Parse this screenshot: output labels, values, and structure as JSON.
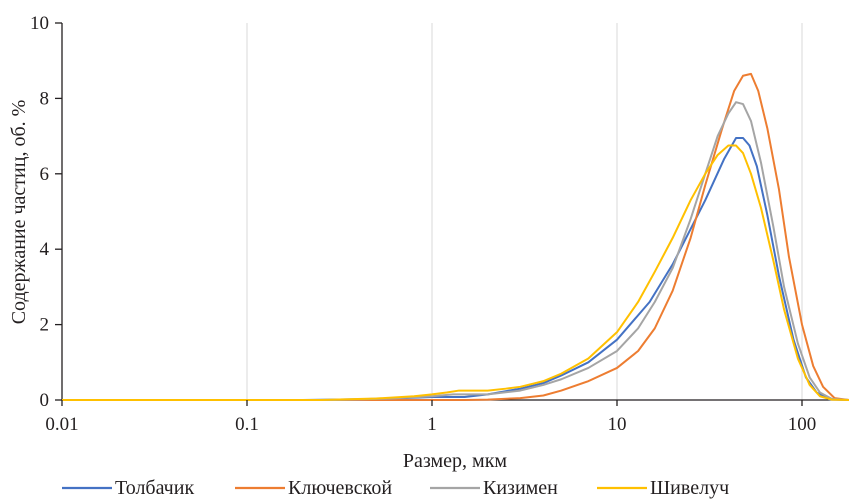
{
  "chart_data": {
    "type": "line",
    "xlabel": "Размер, мкм",
    "ylabel": "Содержание частиц, об. %",
    "x_scale": "log",
    "xlim": [
      0.01,
      180
    ],
    "ylim": [
      0,
      10
    ],
    "x_ticks": [
      0.01,
      0.1,
      1,
      10,
      100
    ],
    "x_tick_labels": [
      "0.01",
      "0.1",
      "1",
      "10",
      "100"
    ],
    "y_ticks": [
      0,
      2,
      4,
      6,
      8,
      10
    ],
    "y_tick_labels": [
      "0",
      "2",
      "4",
      "6",
      "8",
      "10"
    ],
    "grid": "vertical",
    "legend_position": "bottom",
    "series": [
      {
        "name": "Толбачик",
        "color": "#4472c4",
        "points": [
          [
            0.01,
            0
          ],
          [
            0.2,
            0
          ],
          [
            0.4,
            0.02
          ],
          [
            0.7,
            0.05
          ],
          [
            1,
            0.08
          ],
          [
            1.5,
            0.08
          ],
          [
            2,
            0.15
          ],
          [
            3,
            0.3
          ],
          [
            4,
            0.45
          ],
          [
            5,
            0.65
          ],
          [
            7,
            1.0
          ],
          [
            10,
            1.6
          ],
          [
            15,
            2.6
          ],
          [
            20,
            3.6
          ],
          [
            30,
            5.3
          ],
          [
            38,
            6.4
          ],
          [
            44,
            6.95
          ],
          [
            48,
            6.95
          ],
          [
            52,
            6.75
          ],
          [
            57,
            6.2
          ],
          [
            65,
            4.9
          ],
          [
            75,
            3.3
          ],
          [
            90,
            1.6
          ],
          [
            105,
            0.6
          ],
          [
            120,
            0.2
          ],
          [
            140,
            0.02
          ],
          [
            180,
            0
          ]
        ]
      },
      {
        "name": "Ключевской",
        "color": "#ed7d31",
        "points": [
          [
            0.01,
            0
          ],
          [
            1.5,
            0
          ],
          [
            2,
            0.01
          ],
          [
            3,
            0.05
          ],
          [
            4,
            0.12
          ],
          [
            5,
            0.25
          ],
          [
            7,
            0.5
          ],
          [
            10,
            0.85
          ],
          [
            13,
            1.3
          ],
          [
            16,
            1.9
          ],
          [
            20,
            2.9
          ],
          [
            25,
            4.3
          ],
          [
            30,
            5.7
          ],
          [
            37,
            7.2
          ],
          [
            43,
            8.2
          ],
          [
            48,
            8.6
          ],
          [
            53,
            8.65
          ],
          [
            58,
            8.2
          ],
          [
            65,
            7.2
          ],
          [
            75,
            5.6
          ],
          [
            85,
            3.8
          ],
          [
            100,
            2.0
          ],
          [
            115,
            0.9
          ],
          [
            130,
            0.35
          ],
          [
            150,
            0.05
          ],
          [
            180,
            0
          ]
        ]
      },
      {
        "name": "Кизимен",
        "color": "#a5a5a5",
        "points": [
          [
            0.01,
            0
          ],
          [
            0.3,
            0
          ],
          [
            0.6,
            0.04
          ],
          [
            1,
            0.1
          ],
          [
            1.3,
            0.15
          ],
          [
            2,
            0.15
          ],
          [
            3,
            0.25
          ],
          [
            4,
            0.4
          ],
          [
            5,
            0.55
          ],
          [
            7,
            0.85
          ],
          [
            10,
            1.3
          ],
          [
            13,
            1.9
          ],
          [
            16,
            2.6
          ],
          [
            20,
            3.5
          ],
          [
            25,
            4.8
          ],
          [
            30,
            6.0
          ],
          [
            35,
            7.0
          ],
          [
            40,
            7.6
          ],
          [
            44,
            7.9
          ],
          [
            48,
            7.85
          ],
          [
            53,
            7.4
          ],
          [
            60,
            6.3
          ],
          [
            70,
            4.6
          ],
          [
            80,
            3.0
          ],
          [
            95,
            1.5
          ],
          [
            110,
            0.6
          ],
          [
            125,
            0.2
          ],
          [
            145,
            0.03
          ],
          [
            180,
            0
          ]
        ]
      },
      {
        "name": "Шивелуч",
        "color": "#ffc000",
        "points": [
          [
            0.01,
            0
          ],
          [
            0.25,
            0
          ],
          [
            0.5,
            0.04
          ],
          [
            0.8,
            0.1
          ],
          [
            1,
            0.15
          ],
          [
            1.2,
            0.2
          ],
          [
            1.4,
            0.25
          ],
          [
            1.7,
            0.25
          ],
          [
            2,
            0.25
          ],
          [
            2.5,
            0.3
          ],
          [
            3,
            0.35
          ],
          [
            4,
            0.5
          ],
          [
            5,
            0.7
          ],
          [
            7,
            1.1
          ],
          [
            10,
            1.8
          ],
          [
            13,
            2.6
          ],
          [
            16,
            3.4
          ],
          [
            20,
            4.3
          ],
          [
            25,
            5.3
          ],
          [
            30,
            6.0
          ],
          [
            35,
            6.5
          ],
          [
            40,
            6.75
          ],
          [
            44,
            6.75
          ],
          [
            48,
            6.55
          ],
          [
            53,
            6.0
          ],
          [
            60,
            5.1
          ],
          [
            70,
            3.7
          ],
          [
            80,
            2.4
          ],
          [
            95,
            1.1
          ],
          [
            110,
            0.4
          ],
          [
            125,
            0.1
          ],
          [
            145,
            0.01
          ],
          [
            180,
            0
          ]
        ]
      }
    ]
  }
}
